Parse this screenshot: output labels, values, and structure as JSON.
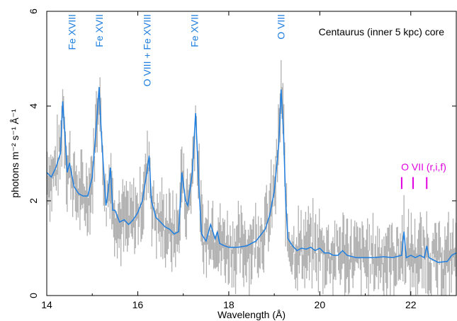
{
  "chart_data": {
    "type": "line",
    "title": "Centaurus (inner 5 kpc) core",
    "xlabel": "Wavelength (Å)",
    "ylabel": "photons m⁻² s⁻¹ Å⁻¹",
    "xlim": [
      14,
      23
    ],
    "ylim": [
      0,
      6
    ],
    "x_ticks": [
      14,
      16,
      18,
      20,
      22
    ],
    "y_ticks": [
      0,
      2,
      4,
      6
    ],
    "grid": false,
    "colors": {
      "model": "#1f7fe0",
      "data": "#b0b0b0",
      "ovii": "#e000e0",
      "labels": "#1f7fe0"
    },
    "series": [
      {
        "type": "line",
        "x": [
          14.0,
          14.1,
          14.2,
          14.3,
          14.35,
          14.4,
          14.45,
          14.5,
          14.6,
          14.7,
          14.8,
          14.9,
          15.0,
          15.1,
          15.15,
          15.2,
          15.3,
          15.35,
          15.4,
          15.45,
          15.5,
          15.6,
          15.7,
          15.8,
          15.9,
          16.0,
          16.1,
          16.2,
          16.25,
          16.3,
          16.4,
          16.5,
          16.6,
          16.7,
          16.8,
          16.9,
          16.97,
          17.05,
          17.1,
          17.2,
          17.27,
          17.35,
          17.4,
          17.5,
          17.6,
          17.7,
          17.75,
          17.8,
          17.9,
          18.0,
          18.2,
          18.4,
          18.6,
          18.8,
          18.9,
          19.0,
          19.1,
          19.15,
          19.2,
          19.25,
          19.3,
          19.4,
          19.5,
          19.6,
          19.7,
          19.8,
          19.9,
          20.0,
          20.1,
          20.2,
          20.3,
          20.4,
          20.5,
          20.6,
          20.8,
          21.0,
          21.2,
          21.4,
          21.6,
          21.8,
          21.85,
          21.9,
          22.0,
          22.1,
          22.2,
          22.3,
          22.35,
          22.4,
          22.5,
          22.6,
          22.8,
          22.9,
          23.0
        ],
        "y": [
          2.6,
          2.5,
          2.7,
          3.0,
          4.1,
          3.4,
          2.6,
          2.8,
          2.3,
          2.15,
          2.1,
          2.1,
          2.5,
          3.7,
          4.4,
          3.4,
          1.9,
          2.2,
          2.7,
          1.8,
          1.8,
          1.55,
          1.6,
          1.5,
          1.6,
          1.75,
          2.0,
          2.6,
          2.95,
          2.0,
          1.65,
          1.55,
          1.45,
          1.4,
          1.3,
          1.35,
          2.6,
          2.0,
          1.9,
          2.6,
          3.85,
          2.2,
          1.3,
          1.15,
          1.5,
          1.2,
          1.35,
          1.1,
          1.05,
          1.02,
          1.02,
          1.05,
          1.15,
          1.4,
          1.7,
          2.2,
          3.2,
          4.35,
          3.5,
          2.0,
          1.2,
          1.05,
          0.95,
          1.0,
          0.98,
          1.02,
          0.95,
          1.0,
          0.9,
          0.9,
          0.85,
          0.85,
          0.95,
          0.85,
          0.8,
          0.8,
          0.8,
          0.82,
          0.8,
          0.85,
          1.35,
          0.8,
          0.85,
          0.8,
          0.85,
          0.8,
          1.05,
          0.8,
          0.75,
          0.7,
          0.72,
          0.85,
          0.9
        ]
      }
    ],
    "line_labels": [
      {
        "text": "Fe XVIII",
        "x": 14.55
      },
      {
        "text": "Fe XVII",
        "x": 15.15
      },
      {
        "text": "O VIII + Fe XVIII",
        "x": 16.2
      },
      {
        "text": "Fe XVII",
        "x": 17.25
      },
      {
        "text": "O VIII",
        "x": 19.15
      }
    ],
    "ovii": {
      "label": "O VII (r,i,f)",
      "markers": [
        21.8,
        22.05,
        22.35
      ]
    }
  }
}
